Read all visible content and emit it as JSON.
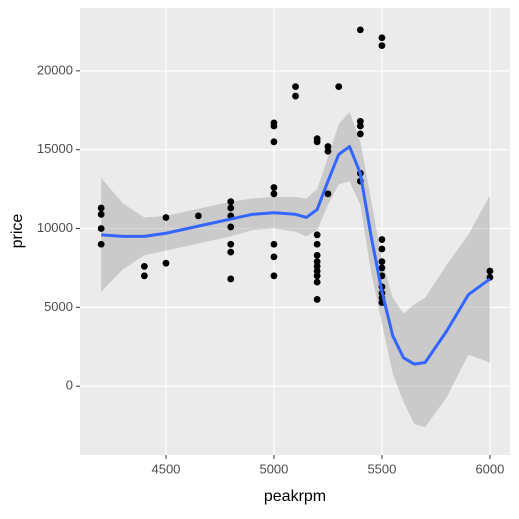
{
  "chart_data": {
    "type": "scatter",
    "x_label": "peakrpm",
    "y_label": "price",
    "x": [
      4200,
      4200,
      4200,
      4200,
      4400,
      4400,
      4500,
      4500,
      4650,
      4800,
      4800,
      4800,
      4800,
      4800,
      4800,
      4800,
      5000,
      5000,
      5000,
      5000,
      5000,
      5000,
      5000,
      5000,
      5100,
      5100,
      5200,
      5200,
      5200,
      5200,
      5200,
      5200,
      5200,
      5200,
      5200,
      5200,
      5200,
      5250,
      5250,
      5250,
      5300,
      5400,
      5400,
      5400,
      5400,
      5400,
      5400,
      5500,
      5500,
      5500,
      5500,
      5500,
      5500,
      5500,
      5500,
      5500,
      5500,
      5500,
      6000,
      6000
    ],
    "y": [
      11300,
      10900,
      10000,
      9000,
      7600,
      7000,
      10700,
      7800,
      10800,
      11700,
      11300,
      10800,
      10100,
      9000,
      8500,
      6800,
      16700,
      16500,
      15500,
      12600,
      12200,
      9000,
      8200,
      7000,
      19000,
      18400,
      15700,
      15500,
      9600,
      9000,
      8300,
      7900,
      7600,
      7300,
      7000,
      6600,
      5500,
      15200,
      14900,
      12200,
      19000,
      22600,
      16800,
      16500,
      16000,
      13500,
      13000,
      22100,
      21600,
      9300,
      8700,
      7900,
      7500,
      7000,
      6300,
      5900,
      5600,
      5300,
      7300,
      6900
    ],
    "point_color": "#000000",
    "smooth": {
      "color": "#3366ff",
      "band_color": "#999999",
      "x": [
        4200,
        4300,
        4400,
        4500,
        4600,
        4700,
        4800,
        4900,
        5000,
        5100,
        5150,
        5200,
        5250,
        5300,
        5350,
        5400,
        5450,
        5500,
        5550,
        5600,
        5650,
        5700,
        5800,
        5900,
        6000
      ],
      "y": [
        9600,
        9500,
        9500,
        9700,
        10000,
        10300,
        10600,
        10900,
        11000,
        10900,
        10700,
        11200,
        13000,
        14700,
        15200,
        13500,
        9500,
        6000,
        3200,
        1800,
        1400,
        1500,
        3500,
        5800,
        6800
      ],
      "lower": [
        6000,
        7400,
        8300,
        8600,
        8900,
        9200,
        9500,
        9900,
        10000,
        9800,
        9500,
        9900,
        11500,
        12800,
        13000,
        11500,
        7200,
        4000,
        800,
        -1000,
        -2400,
        -2600,
        -700,
        2000,
        1500
      ],
      "upper": [
        13200,
        11600,
        10700,
        10800,
        11100,
        11400,
        11700,
        11900,
        12000,
        12000,
        11900,
        12500,
        14500,
        16600,
        17400,
        15500,
        11800,
        8000,
        5600,
        4600,
        5200,
        5600,
        7700,
        9600,
        12100
      ]
    },
    "xlim": [
      4102,
      6093
    ],
    "ylim": [
      -4367,
      23987
    ],
    "xticks": [
      4500,
      5000,
      5500,
      6000
    ],
    "yticks": [
      0,
      5000,
      10000,
      15000,
      20000
    ],
    "grid": true
  }
}
